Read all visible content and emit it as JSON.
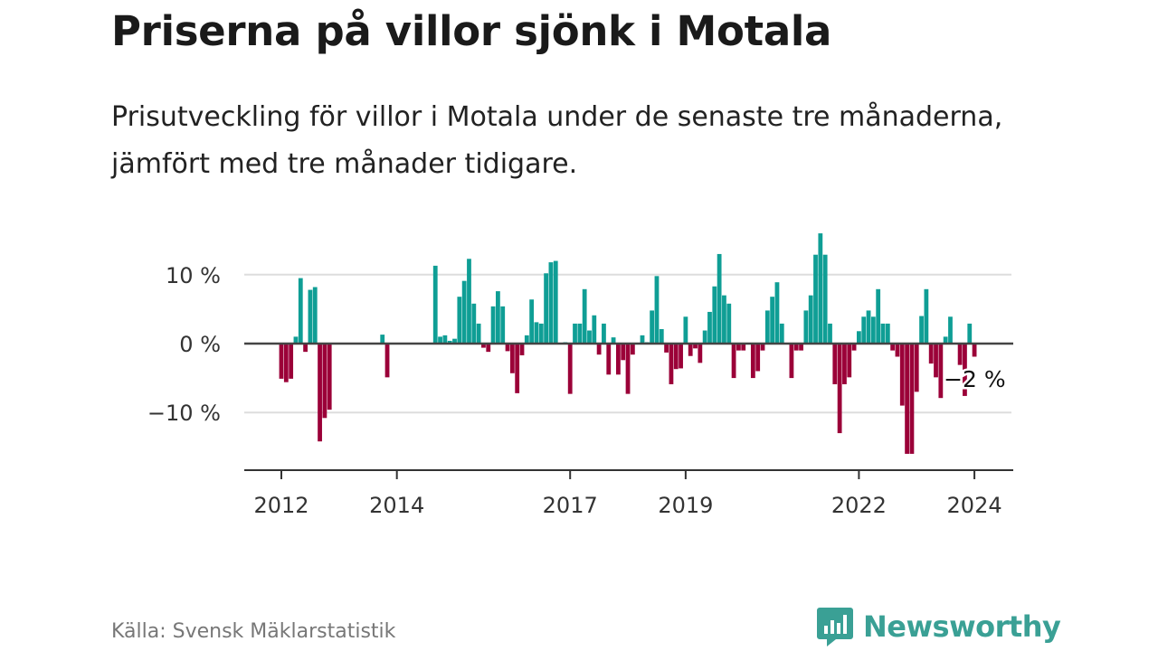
{
  "header": {
    "title": "Priserna på villor sjönk i Motala",
    "subtitle": "Prisutveckling för villor i Motala under de senaste tre månaderna, jämfört med tre månader tidigare."
  },
  "footer": {
    "source": "Källa: Svensk Mäklarstatistik",
    "brand": "Newsworthy"
  },
  "colors": {
    "positive": "#0f9e95",
    "negative": "#9b0038",
    "brand": "#3aa095"
  },
  "chart_data": {
    "type": "bar",
    "title": "Priserna på villor sjönk i Motala",
    "xlabel": "",
    "ylabel": "",
    "ylim": [
      -18,
      17
    ],
    "grid": true,
    "start": "2012-01",
    "frequency": "monthly",
    "y_ticks": [
      {
        "value": 10,
        "label": "10 %"
      },
      {
        "value": 0,
        "label": "0 %"
      },
      {
        "value": -10,
        "label": "−10 %"
      }
    ],
    "x_ticks": [
      {
        "month_index": 0,
        "label": "2012"
      },
      {
        "month_index": 24,
        "label": "2014"
      },
      {
        "month_index": 60,
        "label": "2017"
      },
      {
        "month_index": 84,
        "label": "2019"
      },
      {
        "month_index": 120,
        "label": "2022"
      },
      {
        "month_index": 144,
        "label": "2024"
      }
    ],
    "annotation": {
      "month_index": 144,
      "label": "−2 %"
    },
    "values": [
      -5.1,
      -5.6,
      -5.1,
      1.0,
      9.5,
      -1.2,
      7.8,
      8.2,
      -14.2,
      -10.8,
      -9.6,
      null,
      null,
      null,
      null,
      null,
      null,
      null,
      null,
      null,
      null,
      1.3,
      -4.9,
      null,
      null,
      null,
      null,
      null,
      null,
      null,
      null,
      null,
      11.3,
      1.0,
      1.2,
      0.4,
      0.7,
      6.8,
      9.1,
      12.3,
      5.8,
      2.9,
      -0.6,
      -1.2,
      5.4,
      7.6,
      5.4,
      -1.1,
      -4.3,
      -7.2,
      -1.7,
      1.2,
      6.4,
      3.1,
      2.9,
      10.2,
      11.8,
      12.0,
      null,
      0.2,
      -7.3,
      2.9,
      2.9,
      7.9,
      1.9,
      4.1,
      -1.6,
      2.9,
      -4.5,
      0.9,
      -4.5,
      -2.4,
      -7.3,
      -1.6,
      null,
      1.2,
      0.2,
      4.8,
      9.8,
      2.1,
      -1.3,
      -5.9,
      -3.7,
      -3.6,
      3.9,
      -1.8,
      -0.7,
      -2.8,
      1.9,
      4.6,
      8.3,
      13.0,
      7.0,
      5.8,
      -5.0,
      -1.0,
      -1.0,
      null,
      -5.0,
      -4.0,
      -1.0,
      4.8,
      6.8,
      8.9,
      2.9,
      null,
      -5.0,
      -1.0,
      -1.0,
      4.8,
      7.0,
      12.9,
      16.0,
      12.9,
      2.9,
      -5.9,
      -13.0,
      -5.9,
      -4.9,
      -1.0,
      1.8,
      3.9,
      4.8,
      3.9,
      7.9,
      2.9,
      2.9,
      -1.0,
      -1.9,
      -9.0,
      -16.0,
      -16.0,
      -7.0,
      4.0,
      7.9,
      -2.9,
      -4.9,
      -7.9,
      1.0,
      3.9,
      null,
      -3.1,
      -7.6,
      2.9,
      -1.9
    ]
  }
}
